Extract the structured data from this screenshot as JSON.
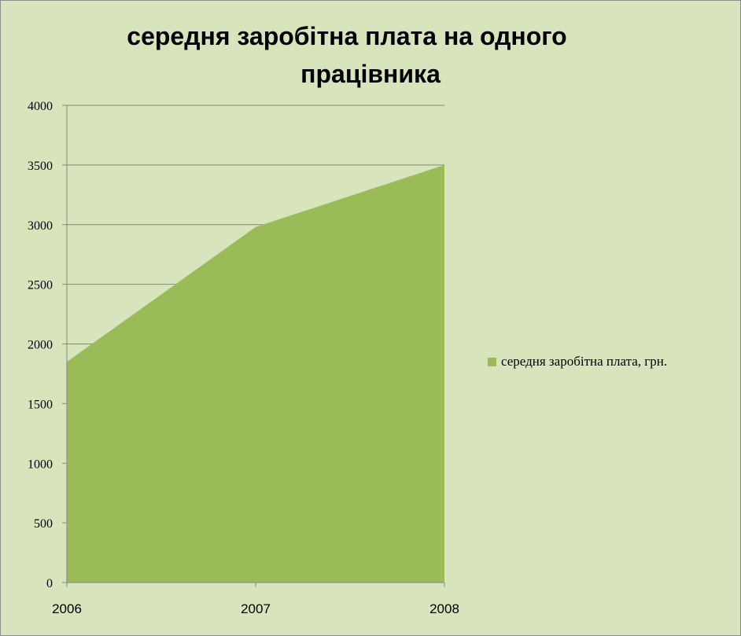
{
  "chart_data": {
    "type": "area",
    "title_lines": [
      "середня заробітна плата на одного",
      "працівника"
    ],
    "categories": [
      "2006",
      "2007",
      "2008"
    ],
    "series": [
      {
        "name": "середня заробітна плата, грн.",
        "values": [
          1850,
          2980,
          3500
        ],
        "color": "#9bbb59"
      }
    ],
    "ylim": [
      0,
      4000
    ],
    "yticks": [
      "0",
      "500",
      "1000",
      "1500",
      "2000",
      "2500",
      "3000",
      "3500",
      "4000"
    ],
    "grid": true,
    "legend_position": "right"
  },
  "colors": {
    "background": "#d8e4bc",
    "series_fill": "#9bbb59",
    "gridline": "#868686"
  }
}
